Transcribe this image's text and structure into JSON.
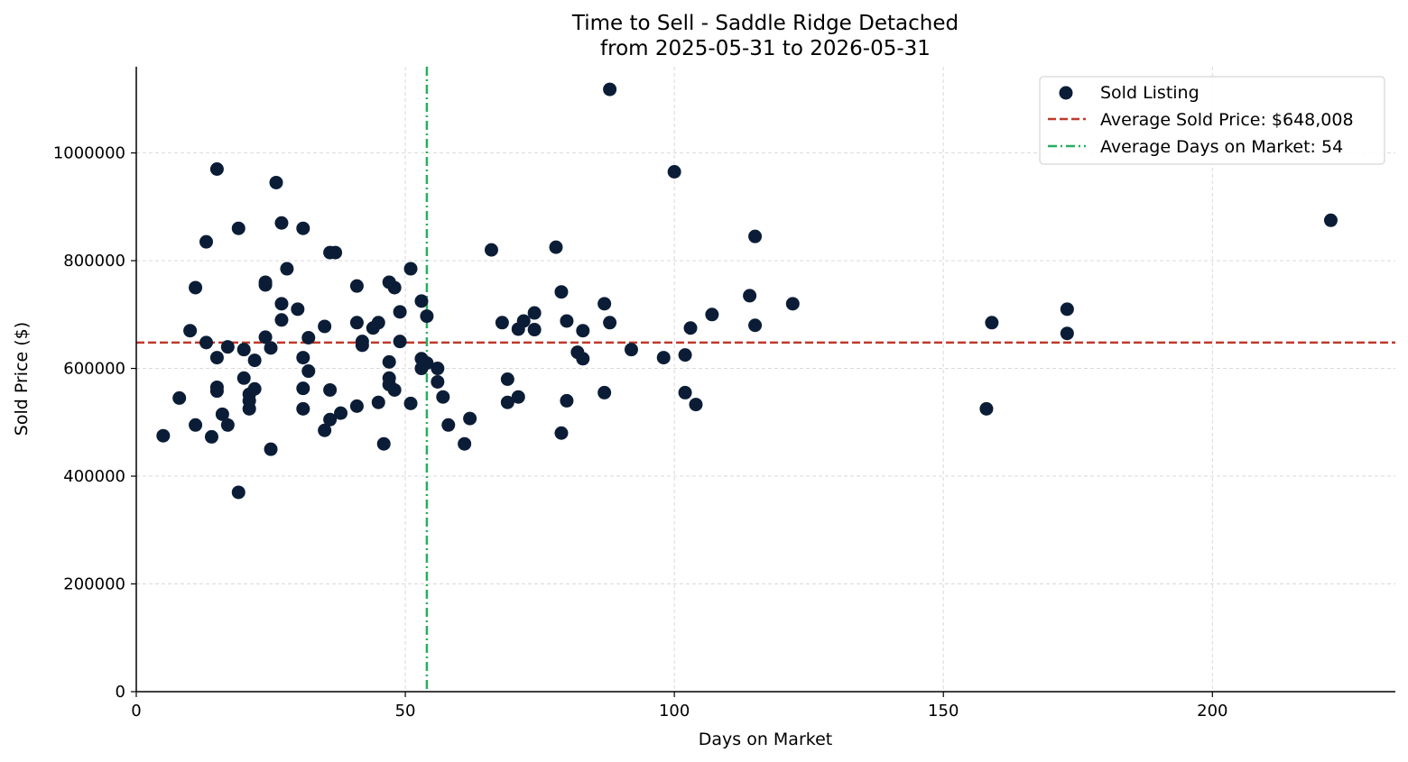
{
  "colors": {
    "points": "#0b1d36",
    "avg_price_line": "#c0392b",
    "avg_days_line": "#27ae60",
    "grid": "#d9d9d9",
    "axis": "#000000"
  },
  "chart_data": {
    "type": "scatter",
    "title": "Time to Sell - Saddle Ridge Detached",
    "subtitle": "from 2025-05-31 to 2026-05-31",
    "xlabel": "Days on Market",
    "ylabel": "Sold Price ($)",
    "xlim": [
      0,
      234
    ],
    "ylim": [
      0,
      1160000
    ],
    "xticks": [
      0,
      50,
      100,
      150,
      200
    ],
    "yticks": [
      0,
      200000,
      400000,
      600000,
      800000,
      1000000
    ],
    "grid": true,
    "legend_position": "top-right",
    "legend": [
      {
        "label": "Sold Listing",
        "kind": "marker"
      },
      {
        "label": "Average Sold Price: $648,008",
        "kind": "dashed"
      },
      {
        "label": "Average Days on Market: 54",
        "kind": "dashdot"
      }
    ],
    "average_price": 648008,
    "average_days": 54,
    "series": [
      {
        "name": "Sold Listing",
        "points": [
          [
            5,
            475000
          ],
          [
            8,
            545000
          ],
          [
            10,
            670000
          ],
          [
            11,
            750000
          ],
          [
            11,
            495000
          ],
          [
            13,
            835000
          ],
          [
            13,
            648000
          ],
          [
            14,
            473000
          ],
          [
            15,
            970000
          ],
          [
            15,
            620000
          ],
          [
            15,
            565000
          ],
          [
            15,
            558000
          ],
          [
            16,
            515000
          ],
          [
            17,
            640000
          ],
          [
            17,
            495000
          ],
          [
            19,
            860000
          ],
          [
            19,
            370000
          ],
          [
            20,
            635000
          ],
          [
            20,
            582000
          ],
          [
            21,
            552000
          ],
          [
            21,
            540000
          ],
          [
            21,
            525000
          ],
          [
            22,
            615000
          ],
          [
            22,
            562000
          ],
          [
            24,
            760000
          ],
          [
            24,
            755000
          ],
          [
            24,
            658000
          ],
          [
            25,
            638000
          ],
          [
            25,
            450000
          ],
          [
            26,
            945000
          ],
          [
            27,
            870000
          ],
          [
            27,
            720000
          ],
          [
            27,
            690000
          ],
          [
            28,
            785000
          ],
          [
            30,
            710000
          ],
          [
            31,
            860000
          ],
          [
            31,
            620000
          ],
          [
            31,
            563000
          ],
          [
            31,
            525000
          ],
          [
            32,
            657000
          ],
          [
            32,
            595000
          ],
          [
            35,
            678000
          ],
          [
            35,
            485000
          ],
          [
            36,
            815000
          ],
          [
            36,
            560000
          ],
          [
            36,
            505000
          ],
          [
            37,
            815000
          ],
          [
            38,
            517000
          ],
          [
            41,
            753000
          ],
          [
            41,
            685000
          ],
          [
            41,
            530000
          ],
          [
            42,
            650000
          ],
          [
            42,
            643000
          ],
          [
            44,
            675000
          ],
          [
            45,
            685000
          ],
          [
            45,
            537000
          ],
          [
            46,
            460000
          ],
          [
            47,
            760000
          ],
          [
            47,
            612000
          ],
          [
            47,
            582000
          ],
          [
            47,
            570000
          ],
          [
            48,
            750000
          ],
          [
            48,
            560000
          ],
          [
            49,
            705000
          ],
          [
            49,
            650000
          ],
          [
            51,
            785000
          ],
          [
            51,
            535000
          ],
          [
            53,
            725000
          ],
          [
            53,
            618000
          ],
          [
            53,
            600000
          ],
          [
            54,
            697000
          ],
          [
            54,
            610000
          ],
          [
            56,
            600000
          ],
          [
            56,
            575000
          ],
          [
            57,
            547000
          ],
          [
            58,
            495000
          ],
          [
            61,
            460000
          ],
          [
            62,
            507000
          ],
          [
            66,
            820000
          ],
          [
            68,
            685000
          ],
          [
            69,
            580000
          ],
          [
            69,
            537000
          ],
          [
            71,
            673000
          ],
          [
            71,
            547000
          ],
          [
            72,
            688000
          ],
          [
            74,
            703000
          ],
          [
            74,
            672000
          ],
          [
            78,
            825000
          ],
          [
            79,
            742000
          ],
          [
            79,
            480000
          ],
          [
            80,
            688000
          ],
          [
            80,
            540000
          ],
          [
            82,
            630000
          ],
          [
            83,
            670000
          ],
          [
            83,
            618000
          ],
          [
            87,
            720000
          ],
          [
            87,
            555000
          ],
          [
            88,
            1118000
          ],
          [
            88,
            685000
          ],
          [
            92,
            635000
          ],
          [
            98,
            620000
          ],
          [
            100,
            965000
          ],
          [
            102,
            625000
          ],
          [
            102,
            555000
          ],
          [
            103,
            675000
          ],
          [
            104,
            533000
          ],
          [
            107,
            700000
          ],
          [
            114,
            735000
          ],
          [
            115,
            845000
          ],
          [
            115,
            680000
          ],
          [
            122,
            720000
          ],
          [
            158,
            525000
          ],
          [
            159,
            685000
          ],
          [
            173,
            710000
          ],
          [
            173,
            665000
          ],
          [
            222,
            875000
          ]
        ]
      }
    ]
  }
}
